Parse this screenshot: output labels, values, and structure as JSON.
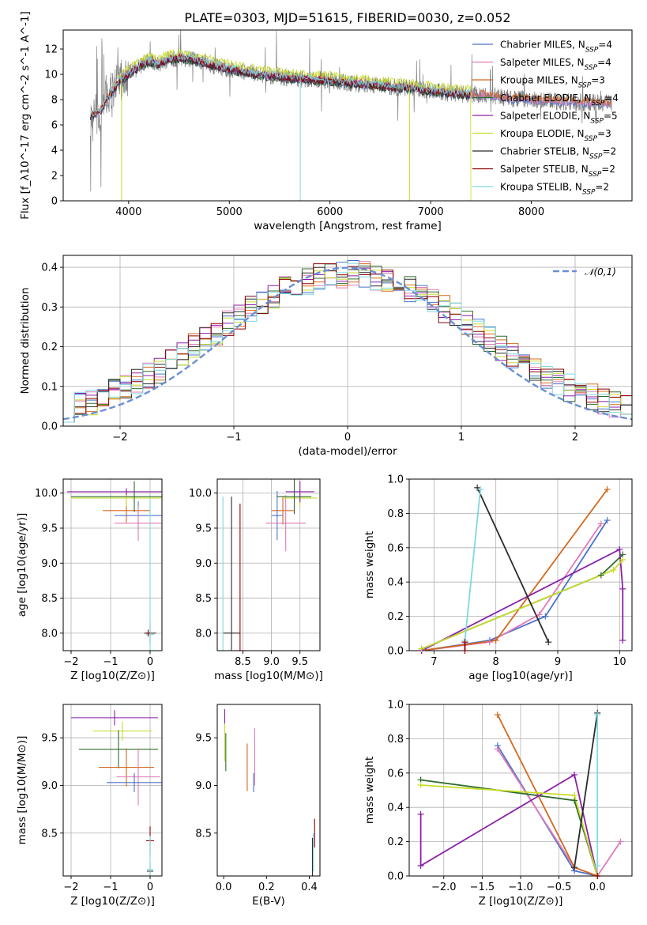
{
  "figure_title": "PLATE=0303, MJD=51615, FIBERID=0030, z=0.052",
  "colors": {
    "Chabrier MILES": "#4a73c9",
    "Salpeter MILES": "#e07ab8",
    "Kroupa MILES": "#d2691e",
    "Chabrier ELODIE": "#2e6b2e",
    "Salpeter ELODIE": "#8b1fa8",
    "Kroupa ELODIE": "#c8dc28",
    "Chabrier STELIB": "#2b2b2b",
    "Salpeter STELIB": "#8b0000",
    "Kroupa STELIB": "#7fd8e0",
    "data": "#808080",
    "gaussian": "#6a8fd6"
  },
  "chart_data": [
    {
      "id": "spectrum",
      "type": "line",
      "title": "PLATE=0303, MJD=51615, FIBERID=0030, z=0.052",
      "xlabel": "wavelength [Angstrom, rest frame]",
      "ylabel": "Flux [f_λ10^-17 erg cm^-2 s^-1 A^-1]",
      "xlim": [
        3350,
        9000
      ],
      "ylim": [
        0,
        13.5
      ],
      "xticks": [
        4000,
        5000,
        6000,
        7000,
        8000
      ],
      "yticks": [
        0,
        2,
        4,
        6,
        8,
        10,
        12
      ],
      "grid": false,
      "legend_position": "top-right",
      "legend": [
        {
          "name": "Chabrier MILES",
          "sub": "SSP",
          "n": "4"
        },
        {
          "name": "Salpeter MILES",
          "sub": "SSP",
          "n": "4"
        },
        {
          "name": "Kroupa MILES",
          "sub": "SSP",
          "n": "3"
        },
        {
          "name": "Chabrier ELODIE",
          "sub": "SSP",
          "n": "4"
        },
        {
          "name": "Salpeter ELODIE",
          "sub": "SSP",
          "n": "5"
        },
        {
          "name": "Kroupa ELODIE",
          "sub": "SSP",
          "n": "3"
        },
        {
          "name": "Chabrier STELIB",
          "sub": "SSP",
          "n": "2"
        },
        {
          "name": "Salpeter STELIB",
          "sub": "SSP",
          "n": "2"
        },
        {
          "name": "Kroupa STELIB",
          "sub": "SSP",
          "n": "2"
        }
      ],
      "continuum": {
        "x": [
          3620,
          3700,
          3800,
          3900,
          4000,
          4100,
          4200,
          4300,
          4400,
          4500,
          4600,
          4800,
          5000,
          5200,
          5400,
          5600,
          5800,
          6000,
          6200,
          6400,
          6600,
          6800,
          7000,
          7200,
          7400,
          7600,
          7800,
          8000,
          8200,
          8400,
          8600,
          8800
        ],
        "y": [
          6.8,
          6.9,
          8.2,
          9.4,
          10.0,
          10.6,
          11.0,
          10.8,
          11.2,
          11.3,
          11.2,
          10.8,
          10.4,
          10.1,
          9.9,
          9.7,
          9.6,
          9.5,
          9.3,
          9.2,
          9.0,
          8.9,
          8.7,
          8.5,
          8.4,
          8.3,
          8.1,
          8.0,
          7.9,
          7.8,
          7.75,
          7.7
        ]
      }
    },
    {
      "id": "residuals",
      "type": "line",
      "xlabel": "(data-model)/error",
      "ylabel": "Normed distribution",
      "xlim": [
        -2.5,
        2.5
      ],
      "ylim": [
        0,
        0.43
      ],
      "xticks": [
        -2,
        -1,
        0,
        1,
        2
      ],
      "yticks": [
        0.0,
        0.1,
        0.2,
        0.3,
        0.4
      ],
      "grid": true,
      "legend_position": "top-right",
      "legend": [
        {
          "name": "𝒩(0,1)"
        }
      ],
      "bins": 50,
      "gaussian": {
        "mean": 0,
        "sigma": 1
      }
    },
    {
      "id": "age-vs-Z",
      "type": "scatter",
      "xlabel": "Z [log10(Z/Z⊙)]",
      "ylabel": "age [log10(age/yr)]",
      "xlim": [
        -2.2,
        0.3
      ],
      "ylim": [
        7.75,
        10.2
      ],
      "xticks": [
        -2,
        -1,
        0
      ],
      "yticks": [
        8.0,
        8.5,
        9.0,
        9.5,
        10.0
      ],
      "grid": true,
      "errorbars": [
        {
          "series": "Kroupa MILES",
          "x": -0.6,
          "xerr": 0.6,
          "y": 9.75,
          "yerr": 0.17
        },
        {
          "series": "Chabrier MILES",
          "x": -0.3,
          "xerr": 0.6,
          "y": 9.68,
          "yerr": 0.2
        },
        {
          "series": "Salpeter MILES",
          "x": -0.3,
          "xerr": 0.6,
          "y": 9.57,
          "yerr": 0.25
        },
        {
          "series": "Kroupa ELODIE",
          "x": -0.6,
          "xerr": 1.4,
          "y": 9.93,
          "yerr": 0.12
        },
        {
          "series": "Chabrier ELODIE",
          "x": -0.4,
          "xerr": 1.6,
          "y": 9.95,
          "yerr": 0.22
        },
        {
          "series": "Salpeter ELODIE",
          "x": -0.6,
          "xerr": 1.5,
          "y": 10.02,
          "yerr": 0.05
        },
        {
          "series": "Chabrier STELIB",
          "x": 0.0,
          "xerr": 0.15,
          "y": 8.0,
          "yerr": 0.15
        },
        {
          "series": "Kroupa STELIB",
          "x": 0.0,
          "xerr": 0.1,
          "y": 7.98,
          "yerr": 1.95
        },
        {
          "series": "Salpeter STELIB",
          "x": -0.05,
          "xerr": 0.05,
          "y": 8.0,
          "yerr": 0.05
        }
      ]
    },
    {
      "id": "age-vs-mass",
      "type": "scatter",
      "xlabel": "mass [log10(M/M⊙)]",
      "ylabel": "",
      "xlim": [
        8.05,
        9.85
      ],
      "ylim": [
        7.75,
        10.2
      ],
      "xticks": [
        8.5,
        9.0,
        9.5
      ],
      "yticks": [
        8.0,
        8.5,
        9.0,
        9.5,
        10.0
      ],
      "grid": true,
      "errorbars": [
        {
          "series": "Kroupa MILES",
          "x": 9.2,
          "xerr": 0.2,
          "y": 9.75,
          "yerr": 0.2
        },
        {
          "series": "Chabrier MILES",
          "x": 9.1,
          "xerr": 0.1,
          "y": 9.68,
          "yerr": 0.35
        },
        {
          "series": "Salpeter MILES",
          "x": 9.25,
          "xerr": 0.35,
          "y": 9.57,
          "yerr": 0.4
        },
        {
          "series": "Kroupa ELODIE",
          "x": 9.5,
          "xerr": 0.3,
          "y": 9.93,
          "yerr": 0.12
        },
        {
          "series": "Chabrier ELODIE",
          "x": 9.4,
          "xerr": 0.3,
          "y": 9.95,
          "yerr": 0.25
        },
        {
          "series": "Salpeter ELODIE",
          "x": 9.5,
          "xerr": 0.25,
          "y": 10.02,
          "yerr": 0.15
        },
        {
          "series": "Chabrier STELIB",
          "x": 8.3,
          "xerr": 0.15,
          "y": 8.0,
          "yerr": 1.95
        },
        {
          "series": "Salpeter STELIB",
          "x": 8.45,
          "xerr": 0.1,
          "y": 7.75,
          "yerr": 2.1
        },
        {
          "series": "Kroupa STELIB",
          "x": 8.15,
          "xerr": 0.05,
          "y": 7.75,
          "yerr": 2.2
        }
      ]
    },
    {
      "id": "weight-vs-age",
      "type": "line",
      "xlabel": "age [log10(age/yr)]",
      "ylabel": "mass weight",
      "xlim": [
        6.6,
        10.2
      ],
      "ylim": [
        0,
        1.0
      ],
      "xticks": [
        7,
        8,
        9,
        10
      ],
      "yticks": [
        0.0,
        0.2,
        0.4,
        0.6,
        0.8,
        1.0
      ],
      "grid": true,
      "series": [
        {
          "name": "Chabrier MILES",
          "x": [
            6.8,
            7.9,
            8.8,
            9.8
          ],
          "y": [
            0.0,
            0.06,
            0.2,
            0.76
          ]
        },
        {
          "name": "Salpeter MILES",
          "x": [
            6.8,
            7.9,
            8.7,
            9.7
          ],
          "y": [
            0.0,
            0.05,
            0.21,
            0.74
          ]
        },
        {
          "name": "Kroupa MILES",
          "x": [
            6.8,
            8.0,
            9.8
          ],
          "y": [
            0.0,
            0.06,
            0.94
          ]
        },
        {
          "name": "Chabrier ELODIE",
          "x": [
            6.8,
            9.7,
            10.05
          ],
          "y": [
            0.01,
            0.44,
            0.56
          ]
        },
        {
          "name": "Salpeter ELODIE",
          "x": [
            6.8,
            10.0,
            10.05,
            10.05
          ],
          "y": [
            0.0,
            0.59,
            0.36,
            0.06
          ]
        },
        {
          "name": "Kroupa ELODIE",
          "x": [
            6.8,
            9.9,
            10.05
          ],
          "y": [
            0.01,
            0.47,
            0.53
          ]
        },
        {
          "name": "Chabrier STELIB",
          "x": [
            7.7,
            8.85
          ],
          "y": [
            0.95,
            0.05
          ]
        },
        {
          "name": "Kroupa STELIB",
          "x": [
            7.5,
            7.75
          ],
          "y": [
            0.06,
            0.94
          ]
        },
        {
          "name": "Salpeter STELIB",
          "x": [
            7.5,
            7.5
          ],
          "y": [
            0.0,
            0.05
          ]
        }
      ]
    },
    {
      "id": "mass-vs-Z",
      "type": "scatter",
      "xlabel": "Z [log10(Z/Z⊙)]",
      "ylabel": "mass [log10(M/M⊙)]",
      "xlim": [
        -2.2,
        0.3
      ],
      "ylim": [
        8.05,
        9.85
      ],
      "xticks": [
        -2,
        -1,
        0
      ],
      "yticks": [
        8.5,
        9.0,
        9.5
      ],
      "grid": true,
      "errorbars": [
        {
          "series": "Salpeter ELODIE",
          "x": -0.9,
          "xerr": 1.1,
          "y": 9.71,
          "yerr": 0.08
        },
        {
          "series": "Kroupa ELODIE",
          "x": -0.7,
          "xerr": 0.75,
          "y": 9.57,
          "yerr": 0.1
        },
        {
          "series": "Chabrier ELODIE",
          "x": -0.8,
          "xerr": 1.0,
          "y": 9.38,
          "yerr": 0.2
        },
        {
          "series": "Kroupa MILES",
          "x": -0.6,
          "xerr": 0.7,
          "y": 9.19,
          "yerr": 0.2
        },
        {
          "series": "Salpeter MILES",
          "x": -0.3,
          "xerr": 0.55,
          "y": 9.09,
          "yerr": 0.3
        },
        {
          "series": "Chabrier MILES",
          "x": -0.4,
          "xerr": 0.7,
          "y": 9.03,
          "yerr": 0.1
        },
        {
          "series": "Salpeter STELIB",
          "x": 0.0,
          "xerr": 0.1,
          "y": 8.42,
          "yerr": 0.15
        },
        {
          "series": "Chabrier STELIB",
          "x": 0.0,
          "xerr": 0.08,
          "y": 8.1,
          "yerr": 0.1
        },
        {
          "series": "Kroupa STELIB",
          "x": 0.0,
          "xerr": 0.08,
          "y": 8.12,
          "yerr": 0.35
        }
      ]
    },
    {
      "id": "mass-vs-ebv",
      "type": "scatter",
      "xlabel": "E(B-V)",
      "ylabel": "",
      "xlim": [
        -0.03,
        0.45
      ],
      "ylim": [
        8.05,
        9.85
      ],
      "xticks": [
        0.0,
        0.2,
        0.4
      ],
      "yticks": [
        8.5,
        9.0,
        9.5
      ],
      "grid": false,
      "errorbars": [
        {
          "series": "Salpeter ELODIE",
          "x": 0.005,
          "xerr": 0.0,
          "y": 9.7,
          "yerr": 0.1
        },
        {
          "series": "Kroupa ELODIE",
          "x": 0.005,
          "xerr": 0.0,
          "y": 9.45,
          "yerr": 0.2
        },
        {
          "series": "Chabrier ELODIE",
          "x": 0.01,
          "xerr": 0.0,
          "y": 9.35,
          "yerr": 0.2
        },
        {
          "series": "Kroupa MILES",
          "x": 0.11,
          "xerr": 0.0,
          "y": 9.19,
          "yerr": 0.25
        },
        {
          "series": "Chabrier MILES",
          "x": 0.14,
          "xerr": 0.0,
          "y": 9.03,
          "yerr": 0.1
        },
        {
          "series": "Salpeter MILES",
          "x": 0.145,
          "xerr": 0.0,
          "y": 9.3,
          "yerr": 0.3
        },
        {
          "series": "Salpeter STELIB",
          "x": 0.425,
          "xerr": 0.0,
          "y": 8.5,
          "yerr": 0.15
        },
        {
          "series": "Chabrier STELIB",
          "x": 0.415,
          "xerr": 0.0,
          "y": 8.25,
          "yerr": 0.2
        },
        {
          "series": "Kroupa STELIB",
          "x": 0.42,
          "xerr": 0.0,
          "y": 8.3,
          "yerr": 0.2
        }
      ]
    },
    {
      "id": "weight-vs-Z",
      "type": "line",
      "xlabel": "Z [log10(Z/Z⊙)]",
      "ylabel": "mass weight",
      "xlim": [
        -2.45,
        0.45
      ],
      "ylim": [
        0,
        1.0
      ],
      "xticks": [
        -2.0,
        -1.5,
        -1.0,
        -0.5,
        0.0
      ],
      "yticks": [
        0.0,
        0.2,
        0.4,
        0.6,
        0.8,
        1.0
      ],
      "grid": true,
      "series": [
        {
          "name": "Chabrier MILES",
          "x": [
            -1.3,
            -0.3,
            0.0
          ],
          "y": [
            0.76,
            0.03,
            0.0
          ]
        },
        {
          "name": "Salpeter MILES",
          "x": [
            -1.3,
            -0.3,
            0.0,
            0.3
          ],
          "y": [
            0.74,
            0.05,
            0.0,
            0.2
          ]
        },
        {
          "name": "Kroupa MILES",
          "x": [
            -1.3,
            -0.3,
            0.0
          ],
          "y": [
            0.94,
            0.05,
            0.0
          ]
        },
        {
          "name": "Chabrier ELODIE",
          "x": [
            -2.3,
            -0.3,
            0.0
          ],
          "y": [
            0.56,
            0.44,
            0.0
          ]
        },
        {
          "name": "Salpeter ELODIE",
          "x": [
            -2.3,
            -2.3,
            -0.3,
            0.0
          ],
          "y": [
            0.36,
            0.06,
            0.59,
            0.0
          ]
        },
        {
          "name": "Kroupa ELODIE",
          "x": [
            -2.3,
            -0.3,
            0.0
          ],
          "y": [
            0.53,
            0.47,
            0.0
          ]
        },
        {
          "name": "Chabrier STELIB",
          "x": [
            -0.3,
            0.0
          ],
          "y": [
            0.05,
            0.95
          ]
        },
        {
          "name": "Kroupa STELIB",
          "x": [
            0.0,
            0.0
          ],
          "y": [
            0.06,
            0.94
          ]
        },
        {
          "name": "Salpeter STELIB",
          "x": [
            0.0
          ],
          "y": [
            0.0
          ]
        }
      ]
    }
  ]
}
